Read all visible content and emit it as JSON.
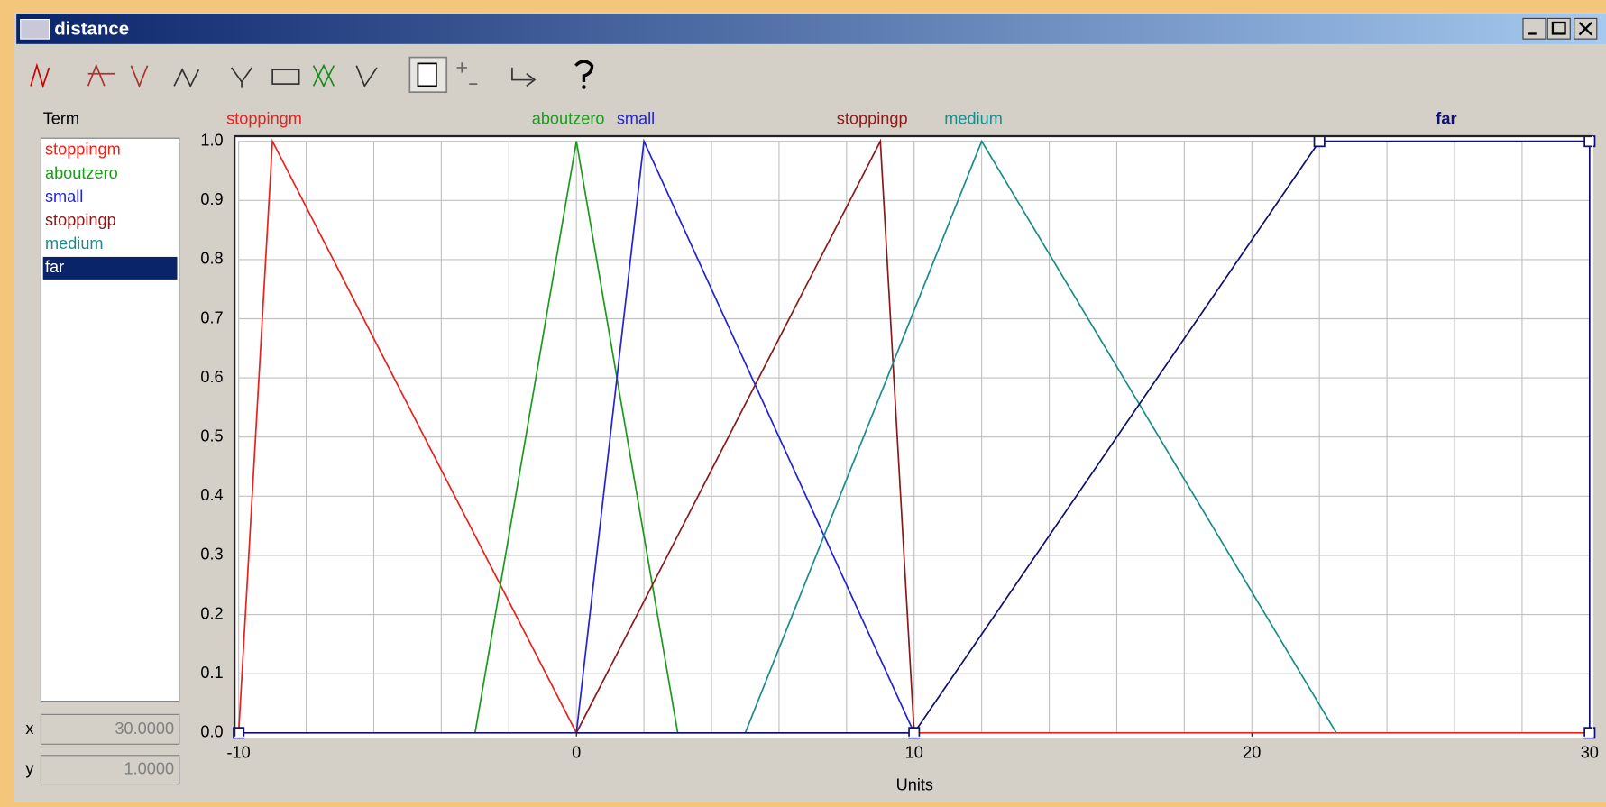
{
  "window": {
    "title": "distance"
  },
  "term_list": {
    "header": "Term",
    "selected": "far"
  },
  "cursor": {
    "x_label": "x",
    "x": "30.0000",
    "y_label": "y",
    "y": "1.0000"
  },
  "chart_data": {
    "type": "line",
    "xlabel": "Units",
    "xlim": [
      -10,
      30
    ],
    "xticks": [
      -10,
      0,
      10,
      20,
      30
    ],
    "xgrid": [
      -10,
      -8,
      -6,
      -4,
      -2,
      0,
      2,
      4,
      6,
      8,
      10,
      12,
      14,
      16,
      18,
      20,
      22,
      24,
      26,
      28,
      30
    ],
    "ylim": [
      0,
      1
    ],
    "yticks": [
      {
        "value": 0,
        "label": "0.0"
      },
      {
        "value": 0.1,
        "label": "0.1"
      },
      {
        "value": 0.2,
        "label": "0.2"
      },
      {
        "value": 0.3,
        "label": "0.3"
      },
      {
        "value": 0.4,
        "label": "0.4"
      },
      {
        "value": 0.5,
        "label": "0.5"
      },
      {
        "value": 0.6,
        "label": "0.6"
      },
      {
        "value": 0.7,
        "label": "0.7"
      },
      {
        "value": 0.8,
        "label": "0.8"
      },
      {
        "value": 0.9,
        "label": "0.9"
      },
      {
        "value": 1,
        "label": "1.0"
      }
    ],
    "grid": true,
    "series": [
      {
        "name": "stoppingm",
        "color": "#e8221e",
        "x": [
          -10,
          -9,
          0,
          30
        ],
        "values": [
          0,
          1,
          0,
          0
        ]
      },
      {
        "name": "aboutzero",
        "color": "#1c9a1c",
        "x": [
          -3,
          0,
          3
        ],
        "values": [
          0,
          1,
          0
        ]
      },
      {
        "name": "small",
        "color": "#2424d0",
        "x": [
          0,
          2,
          10
        ],
        "values": [
          0,
          1,
          0
        ]
      },
      {
        "name": "stoppingp",
        "color": "#8a1a1a",
        "x": [
          0,
          9,
          10
        ],
        "values": [
          0,
          1,
          0
        ]
      },
      {
        "name": "medium",
        "color": "#1a8c8c",
        "x": [
          5,
          12,
          22.5
        ],
        "values": [
          0,
          1,
          0
        ]
      },
      {
        "name": "far",
        "color": "#10106e",
        "x": [
          -10,
          10,
          22,
          30,
          30
        ],
        "values": [
          0,
          0,
          1,
          1,
          0
        ]
      }
    ]
  }
}
